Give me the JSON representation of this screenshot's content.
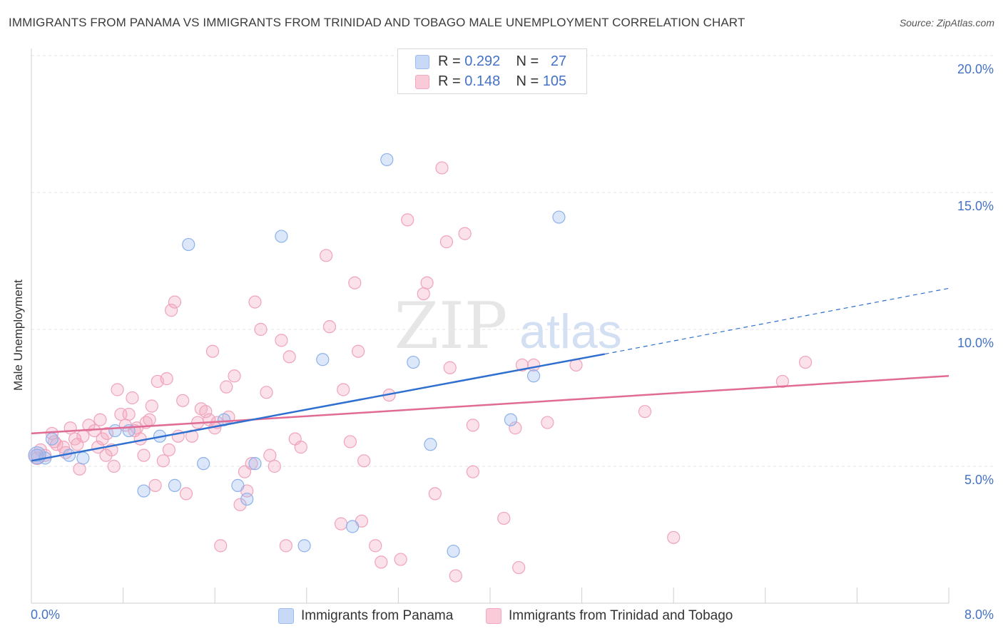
{
  "header": {
    "title": "IMMIGRANTS FROM PANAMA VS IMMIGRANTS FROM TRINIDAD AND TOBAGO MALE UNEMPLOYMENT CORRELATION CHART",
    "source": "Source: ZipAtlas.com"
  },
  "watermark": {
    "zip": "ZIP",
    "atlas": "atlas"
  },
  "legend": {
    "rows": [
      {
        "r_label": "R = ",
        "r_value": "0.292",
        "n_label": "N = ",
        "n_value": "27",
        "color": "#9bbcf0"
      },
      {
        "r_label": "R = ",
        "r_value": "0.148",
        "n_label": "N = ",
        "n_value": "105",
        "color": "#f4a9c0"
      }
    ]
  },
  "bottom_legend": {
    "items": [
      {
        "label": "Immigrants from Panama",
        "color": "#9bbcf0"
      },
      {
        "label": "Immigrants from Trinidad and Tobago",
        "color": "#f4a9c0"
      }
    ]
  },
  "chart_data": {
    "type": "scatter",
    "title": "IMMIGRANTS FROM PANAMA VS IMMIGRANTS FROM TRINIDAD AND TOBAGO MALE UNEMPLOYMENT CORRELATION CHART",
    "xlabel": "",
    "ylabel": "Male Unemployment",
    "xlim": [
      0,
      8
    ],
    "ylim": [
      0,
      20
    ],
    "x_tick_labels": [
      "0.0%",
      "8.0%"
    ],
    "y_ticks": [
      5,
      10,
      15,
      20
    ],
    "y_tick_labels": [
      "5.0%",
      "10.0%",
      "15.0%",
      "20.0%"
    ],
    "grid": "horizontal dashed",
    "legend_position": "top-center",
    "series": [
      {
        "name": "Immigrants from Panama",
        "color": "#9bbcf0",
        "line_color": "#2f6fd0",
        "trend": {
          "x0": 0,
          "y0": 5.2,
          "x1": 5.0,
          "y1": 9.1,
          "dash_to_x": 8.0,
          "dash_to_y": 11.5
        },
        "points": [
          [
            0.05,
            5.4
          ],
          [
            0.18,
            6.0
          ],
          [
            0.33,
            5.4
          ],
          [
            0.73,
            6.3
          ],
          [
            0.85,
            6.3
          ],
          [
            1.12,
            6.1
          ],
          [
            0.45,
            5.3
          ],
          [
            0.98,
            4.1
          ],
          [
            1.25,
            4.3
          ],
          [
            1.37,
            13.1
          ],
          [
            1.5,
            5.1
          ],
          [
            1.68,
            6.7
          ],
          [
            1.8,
            4.3
          ],
          [
            1.88,
            3.8
          ],
          [
            1.95,
            5.1
          ],
          [
            2.18,
            13.4
          ],
          [
            2.38,
            2.1
          ],
          [
            2.54,
            8.9
          ],
          [
            2.8,
            2.8
          ],
          [
            3.1,
            16.2
          ],
          [
            3.33,
            8.8
          ],
          [
            3.48,
            5.8
          ],
          [
            3.68,
            1.9
          ],
          [
            4.18,
            6.7
          ],
          [
            4.38,
            8.3
          ],
          [
            4.6,
            14.1
          ],
          [
            0.12,
            5.3
          ]
        ]
      },
      {
        "name": "Immigrants from Trinidad and Tobago",
        "color": "#f4a9c0",
        "line_color": "#e06b95",
        "trend": {
          "x0": 0,
          "y0": 6.2,
          "x1": 8.0,
          "y1": 8.3
        },
        "points": [
          [
            0.05,
            5.3
          ],
          [
            0.08,
            5.6
          ],
          [
            0.12,
            5.4
          ],
          [
            0.18,
            6.2
          ],
          [
            0.22,
            5.8
          ],
          [
            0.28,
            5.7
          ],
          [
            0.3,
            5.5
          ],
          [
            0.34,
            6.4
          ],
          [
            0.42,
            4.9
          ],
          [
            0.45,
            6.1
          ],
          [
            0.5,
            6.5
          ],
          [
            0.55,
            6.3
          ],
          [
            0.58,
            5.7
          ],
          [
            0.62,
            6.0
          ],
          [
            0.66,
            6.2
          ],
          [
            0.7,
            5.6
          ],
          [
            0.72,
            5.0
          ],
          [
            0.75,
            7.8
          ],
          [
            0.78,
            6.9
          ],
          [
            0.82,
            6.5
          ],
          [
            0.85,
            6.9
          ],
          [
            0.88,
            7.5
          ],
          [
            0.92,
            6.4
          ],
          [
            0.95,
            6.0
          ],
          [
            0.98,
            5.4
          ],
          [
            1.0,
            6.6
          ],
          [
            1.03,
            6.7
          ],
          [
            1.08,
            4.3
          ],
          [
            1.1,
            8.1
          ],
          [
            1.15,
            5.2
          ],
          [
            1.18,
            8.2
          ],
          [
            1.22,
            10.7
          ],
          [
            1.25,
            11.0
          ],
          [
            1.28,
            6.1
          ],
          [
            1.32,
            7.4
          ],
          [
            1.35,
            4.0
          ],
          [
            1.4,
            6.1
          ],
          [
            1.45,
            6.6
          ],
          [
            1.48,
            7.1
          ],
          [
            1.52,
            7.0
          ],
          [
            1.55,
            6.7
          ],
          [
            1.58,
            9.2
          ],
          [
            1.6,
            6.4
          ],
          [
            1.65,
            2.1
          ],
          [
            1.7,
            7.9
          ],
          [
            1.72,
            6.8
          ],
          [
            1.77,
            8.3
          ],
          [
            1.82,
            3.6
          ],
          [
            1.86,
            4.8
          ],
          [
            1.88,
            4.1
          ],
          [
            1.92,
            5.1
          ],
          [
            1.95,
            11.0
          ],
          [
            2.0,
            10.0
          ],
          [
            2.05,
            7.7
          ],
          [
            2.08,
            5.4
          ],
          [
            2.12,
            5.0
          ],
          [
            2.18,
            9.6
          ],
          [
            2.22,
            2.1
          ],
          [
            2.25,
            9.0
          ],
          [
            2.3,
            6.0
          ],
          [
            2.35,
            5.7
          ],
          [
            2.57,
            12.7
          ],
          [
            2.6,
            10.1
          ],
          [
            2.7,
            2.9
          ],
          [
            2.72,
            7.8
          ],
          [
            2.78,
            5.9
          ],
          [
            2.82,
            11.7
          ],
          [
            2.85,
            9.2
          ],
          [
            2.88,
            3.0
          ],
          [
            2.9,
            5.2
          ],
          [
            3.0,
            2.1
          ],
          [
            3.05,
            1.5
          ],
          [
            3.12,
            7.6
          ],
          [
            3.22,
            1.6
          ],
          [
            3.28,
            14.0
          ],
          [
            3.45,
            11.7
          ],
          [
            3.42,
            11.3
          ],
          [
            3.52,
            4.0
          ],
          [
            3.58,
            15.9
          ],
          [
            3.62,
            13.2
          ],
          [
            3.65,
            8.6
          ],
          [
            3.7,
            1.0
          ],
          [
            3.78,
            13.5
          ],
          [
            3.85,
            6.5
          ],
          [
            3.85,
            4.8
          ],
          [
            4.12,
            3.1
          ],
          [
            4.22,
            6.4
          ],
          [
            4.25,
            1.3
          ],
          [
            4.28,
            8.7
          ],
          [
            4.38,
            8.7
          ],
          [
            4.5,
            6.6
          ],
          [
            4.75,
            8.7
          ],
          [
            5.35,
            7.0
          ],
          [
            5.6,
            2.4
          ],
          [
            6.55,
            8.1
          ],
          [
            6.75,
            8.8
          ],
          [
            0.2,
            5.9
          ],
          [
            0.38,
            6.0
          ],
          [
            0.6,
            6.7
          ],
          [
            0.65,
            5.4
          ],
          [
            0.4,
            5.8
          ],
          [
            1.05,
            7.2
          ],
          [
            0.9,
            6.3
          ],
          [
            1.2,
            5.6
          ],
          [
            1.62,
            6.6
          ]
        ]
      }
    ]
  }
}
